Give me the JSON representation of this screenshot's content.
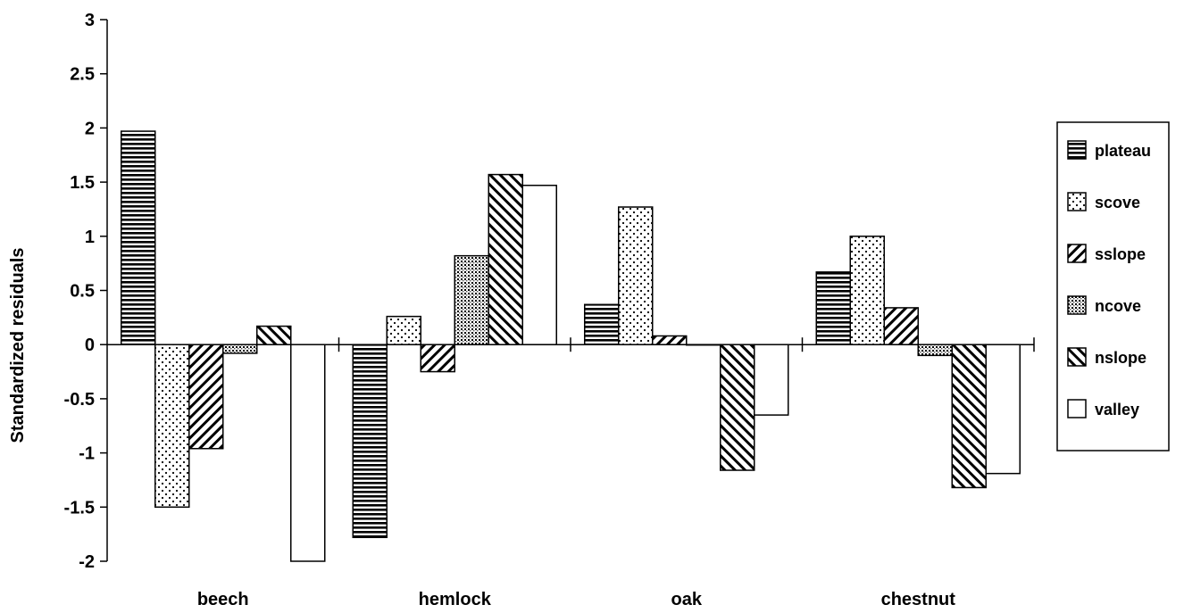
{
  "chart_data": {
    "type": "bar",
    "ylabel": "Standardized residuals",
    "ylim": [
      -2,
      3
    ],
    "ytick_step": 0.5,
    "categories": [
      "beech",
      "hemlock",
      "oak",
      "chestnut"
    ],
    "series": [
      {
        "name": "plateau",
        "pattern": "horizontal-stripes",
        "values": [
          1.97,
          -1.78,
          0.37,
          0.67
        ]
      },
      {
        "name": "scove",
        "pattern": "dots",
        "values": [
          -1.5,
          0.26,
          1.27,
          1.0
        ]
      },
      {
        "name": "sslope",
        "pattern": "diagonal-down",
        "values": [
          -0.96,
          -0.25,
          0.08,
          0.34
        ]
      },
      {
        "name": "ncove",
        "pattern": "fine-dots",
        "values": [
          -0.08,
          0.82,
          0.0,
          -0.1
        ]
      },
      {
        "name": "nslope",
        "pattern": "diagonal-up",
        "values": [
          0.17,
          1.57,
          -1.16,
          -1.32
        ]
      },
      {
        "name": "valley",
        "pattern": "blank",
        "values": [
          -2.0,
          1.47,
          -0.65,
          -1.19
        ]
      }
    ],
    "legend_position": "right",
    "grid": false
  }
}
